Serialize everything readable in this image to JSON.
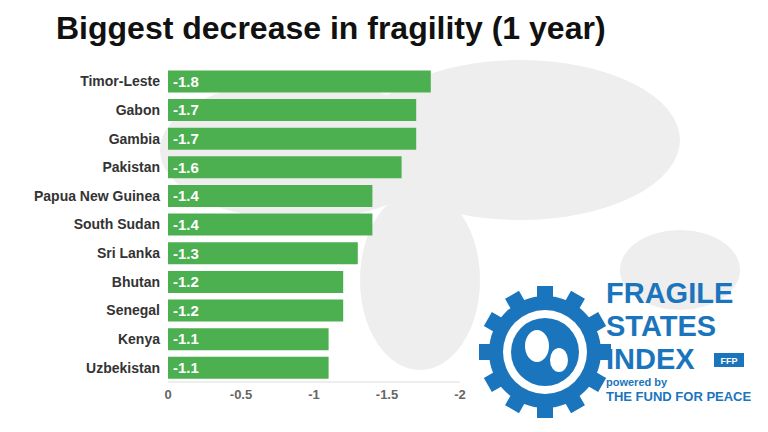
{
  "chart_data": {
    "type": "bar",
    "orientation": "horizontal",
    "title": "Biggest decrease in fragility (1 year)",
    "categories": [
      "Timor-Leste",
      "Gabon",
      "Gambia",
      "Pakistan",
      "Papua New Guinea",
      "South Sudan",
      "Sri Lanka",
      "Bhutan",
      "Senegal",
      "Kenya",
      "Uzbekistan"
    ],
    "values": [
      -1.8,
      -1.7,
      -1.7,
      -1.6,
      -1.4,
      -1.4,
      -1.3,
      -1.2,
      -1.2,
      -1.1,
      -1.1
    ],
    "color": "#4caf50",
    "xlim": [
      0,
      -2
    ],
    "xticks": [
      0,
      -0.5,
      -1,
      -1.5,
      -2
    ],
    "grid": false,
    "data_labels": true,
    "annotations": [
      "FRAGILE",
      "STATES",
      "INDEX",
      "FFP",
      "powered by",
      "THE FUND FOR PEACE"
    ]
  }
}
